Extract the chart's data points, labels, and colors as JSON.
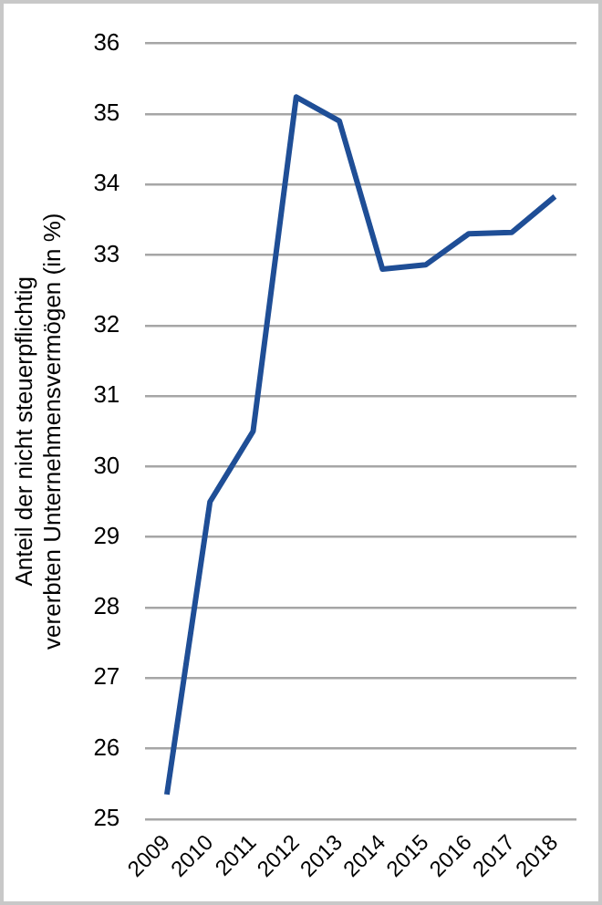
{
  "chart_data": {
    "type": "line",
    "ylabel": "Anteil der nicht steuerpflichtig vererbten Unternehmensvermögen (in %)",
    "categories": [
      "2009",
      "2010",
      "2011",
      "2012",
      "2013",
      "2014",
      "2015",
      "2016",
      "2017",
      "2018"
    ],
    "series": [
      {
        "color": "#1f4e96",
        "values": [
          25.35,
          29.5,
          30.5,
          35.24,
          34.9,
          32.8,
          32.86,
          33.3,
          33.32,
          33.83
        ]
      }
    ],
    "ylim": [
      25,
      36
    ],
    "yticks": [
      25,
      26,
      27,
      28,
      29,
      30,
      31,
      32,
      33,
      34,
      35,
      36
    ],
    "grid": "y",
    "legend": false,
    "marker": "none",
    "line_style": "solid"
  }
}
